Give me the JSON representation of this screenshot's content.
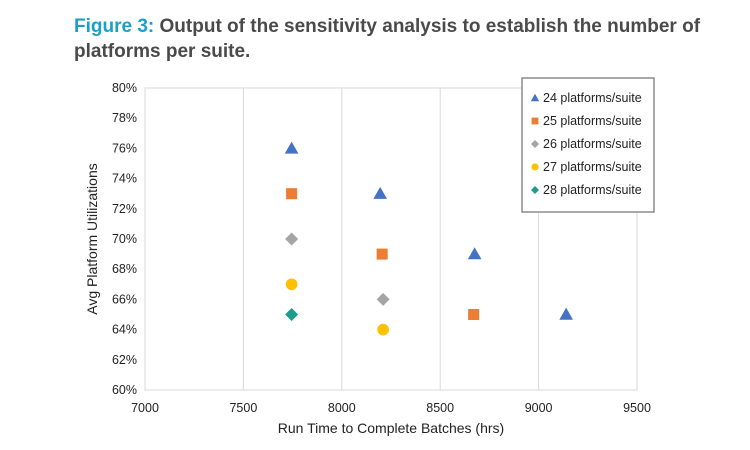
{
  "figure": {
    "label": "Figure 3:",
    "title": "Output of the sensitivity analysis to establish the number of platforms per suite."
  },
  "chart_data": {
    "type": "scatter",
    "xlabel": "Run Time to Complete Batches (hrs)",
    "ylabel": "Avg Platform Utilizations",
    "xlim": [
      7000,
      9500
    ],
    "ylim": [
      60,
      80
    ],
    "x_ticks": [
      7000,
      7500,
      8000,
      8500,
      9000,
      9500
    ],
    "y_ticks": [
      60,
      62,
      64,
      66,
      68,
      70,
      72,
      74,
      76,
      78,
      80
    ],
    "y_tick_labels": [
      "60%",
      "62%",
      "64%",
      "66%",
      "68%",
      "70%",
      "72%",
      "74%",
      "76%",
      "78%",
      "80%"
    ],
    "grid": "vertical",
    "legend_position": "top-right",
    "series": [
      {
        "name": "24 platforms/suite",
        "marker": "triangle",
        "color": "#4472c4",
        "points": [
          [
            7745,
            76
          ],
          [
            8195,
            73
          ],
          [
            8675,
            69
          ],
          [
            9140,
            65
          ]
        ]
      },
      {
        "name": "25 platforms/suite",
        "marker": "square",
        "color": "#ed7d31",
        "points": [
          [
            7745,
            73
          ],
          [
            8205,
            69
          ],
          [
            8670,
            65
          ]
        ]
      },
      {
        "name": "26 platforms/suite",
        "marker": "diamond",
        "color": "#a5a5a5",
        "points": [
          [
            7745,
            70
          ],
          [
            8210,
            66
          ]
        ]
      },
      {
        "name": "27 platforms/suite",
        "marker": "circle",
        "color": "#ffc000",
        "points": [
          [
            7745,
            67
          ],
          [
            8210,
            64
          ]
        ]
      },
      {
        "name": "28 platforms/suite",
        "marker": "diamond",
        "color": "#1f9c89",
        "points": [
          [
            7745,
            65
          ]
        ]
      }
    ]
  }
}
